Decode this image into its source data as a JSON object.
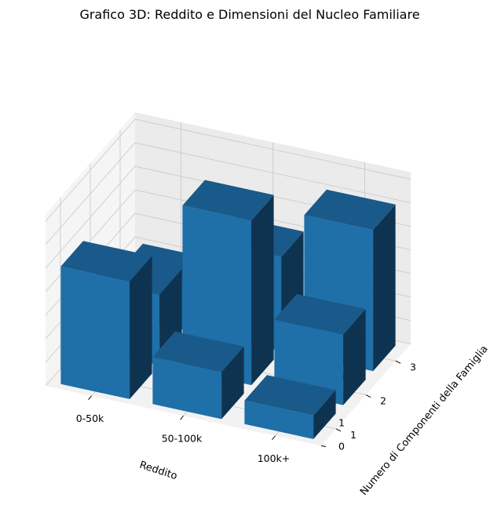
{
  "chart_data": {
    "type": "bar3d",
    "title": "Grafico 3D: Reddito e Dimensioni del Nucleo Familiare",
    "xlabel": "Reddito",
    "ylabel": "Numero di Componenti della Famiglia",
    "zlabel": "",
    "x_categories": [
      "0-50k",
      "50-100k",
      "100k+"
    ],
    "y_categories": [
      "1",
      "2",
      "3"
    ],
    "z_ticks": [
      "0",
      "1",
      "2",
      "3",
      "4",
      "5",
      "6",
      "7"
    ],
    "zlim": [
      0,
      7
    ],
    "bars": [
      {
        "x": "0-50k",
        "y": "1",
        "value": 5
      },
      {
        "x": "0-50k",
        "y": "2",
        "value": 3
      },
      {
        "x": "0-50k",
        "y": "3",
        "value": 2
      },
      {
        "x": "50-100k",
        "y": "1",
        "value": 2
      },
      {
        "x": "50-100k",
        "y": "2",
        "value": 7
      },
      {
        "x": "50-100k",
        "y": "3",
        "value": 4
      },
      {
        "x": "100k+",
        "y": "1",
        "value": 1
      },
      {
        "x": "100k+",
        "y": "2",
        "value": 3
      },
      {
        "x": "100k+",
        "y": "3",
        "value": 6
      }
    ],
    "colors": {
      "bar_top": "#195a8a",
      "bar_front": "#1f6fa8",
      "bar_side": "#0e3350",
      "pane_back": "#ebebeb",
      "pane_left": "#f5f5f5",
      "pane_floor": "#f2f2f2",
      "grid": "#c8c8c8"
    }
  }
}
